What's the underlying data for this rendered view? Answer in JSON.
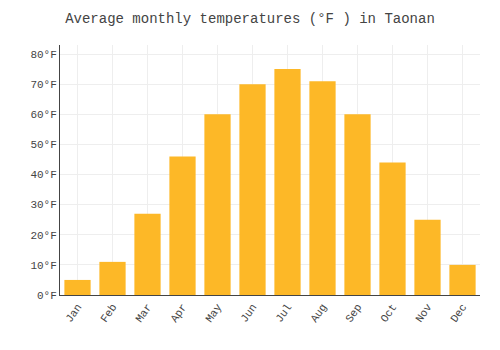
{
  "chart_data": {
    "type": "bar",
    "title": "Average monthly temperatures (°F ) in Taonan",
    "categories": [
      "Jan",
      "Feb",
      "Mar",
      "Apr",
      "May",
      "Jun",
      "Jul",
      "Aug",
      "Sep",
      "Oct",
      "Nov",
      "Dec"
    ],
    "values": [
      5,
      11,
      27,
      46,
      60,
      70,
      75,
      71,
      60,
      44,
      25,
      10
    ],
    "color": "#FDB827",
    "ylim": [
      0,
      83
    ],
    "yticks": [
      {
        "value": 0,
        "label": "0°F"
      },
      {
        "value": 10,
        "label": "10°F"
      },
      {
        "value": 20,
        "label": "20°F"
      },
      {
        "value": 30,
        "label": "30°F"
      },
      {
        "value": 40,
        "label": "40°F"
      },
      {
        "value": 50,
        "label": "50°F"
      },
      {
        "value": 60,
        "label": "60°F"
      },
      {
        "value": 70,
        "label": "70°F"
      },
      {
        "value": 80,
        "label": "80°F"
      }
    ],
    "grid": true
  }
}
